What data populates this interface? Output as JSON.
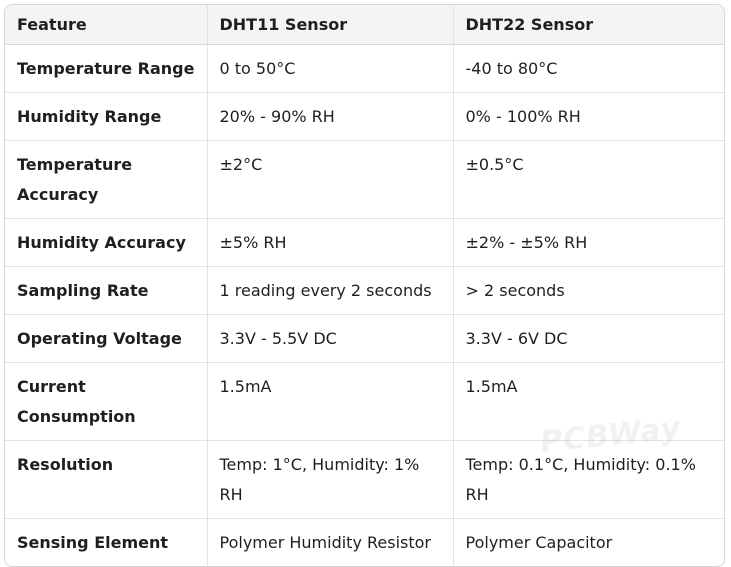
{
  "table": {
    "headers": [
      "Feature",
      "DHT11 Sensor",
      "DHT22 Sensor"
    ],
    "rows": [
      [
        "Temperature Range",
        "0 to 50°C",
        "-40 to 80°C"
      ],
      [
        "Humidity Range",
        "20% - 90% RH",
        "0% - 100% RH"
      ],
      [
        "Temperature Accuracy",
        "±2°C",
        "±0.5°C"
      ],
      [
        "Humidity Accuracy",
        "±5% RH",
        "±2% - ±5% RH"
      ],
      [
        "Sampling Rate",
        "1 reading every 2 seconds",
        "> 2 seconds"
      ],
      [
        "Operating Voltage",
        "3.3V - 5.5V DC",
        "3.3V - 6V DC"
      ],
      [
        "Current Consumption",
        "1.5mA",
        "1.5mA"
      ],
      [
        "Resolution",
        "Temp: 1°C, Humidity: 1% RH",
        "Temp: 0.1°C, Humidity: 0.1% RH"
      ],
      [
        "Sensing Element",
        "Polymer Humidity Resistor",
        "Polymer Capacitor"
      ]
    ]
  },
  "watermark": "PCBWay"
}
